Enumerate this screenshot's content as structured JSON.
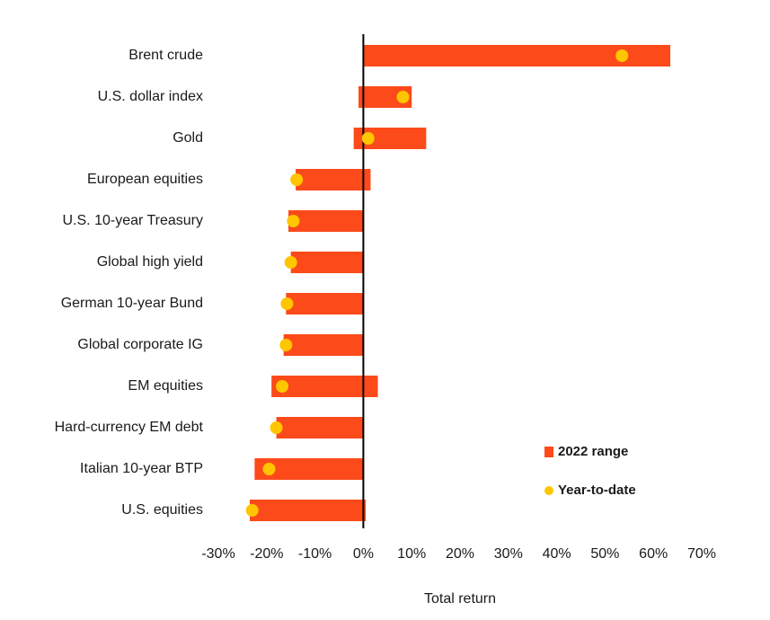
{
  "chart_data": {
    "type": "bar",
    "orientation": "horizontal",
    "categories": [
      "Brent crude",
      "U.S. dollar index",
      "Gold",
      "European equities",
      "U.S. 10-year Treasury",
      "Global high yield",
      "German 10-year Bund",
      "Global corporate IG",
      "EM equities",
      "Hard-currency EM debt",
      "Italian 10-year BTP",
      "U.S. equities"
    ],
    "series": [
      {
        "name": "2022 range",
        "type": "range",
        "low": [
          0,
          -1,
          -2,
          -14,
          -15.5,
          -15,
          -16,
          -16.5,
          -19,
          -18,
          -22.5,
          -23.5
        ],
        "high": [
          63.5,
          10,
          13,
          1.5,
          0,
          0,
          0,
          0,
          3,
          0,
          0,
          0.5
        ]
      },
      {
        "name": "Year-to-date",
        "type": "dot",
        "values": [
          53.5,
          8.2,
          1,
          -13.8,
          -14.5,
          -15,
          -15.8,
          -16,
          -16.8,
          -18,
          -19.5,
          -23
        ]
      }
    ],
    "xlabel": "Total return",
    "ylabel": "",
    "xlim": [
      -30,
      70
    ],
    "xticks": [
      -30,
      -20,
      -10,
      0,
      10,
      20,
      30,
      40,
      50,
      60,
      70
    ],
    "xtick_labels": [
      "-30%",
      "-20%",
      "-10%",
      "0%",
      "10%",
      "20%",
      "30%",
      "40%",
      "50%",
      "60%",
      "70%"
    ],
    "legend_position": "bottom-right",
    "grid": false,
    "colors": {
      "range": "#fc4a1a",
      "dot": "#ffc600",
      "zero_line": "#000000",
      "text": "#1a1a1a"
    }
  }
}
